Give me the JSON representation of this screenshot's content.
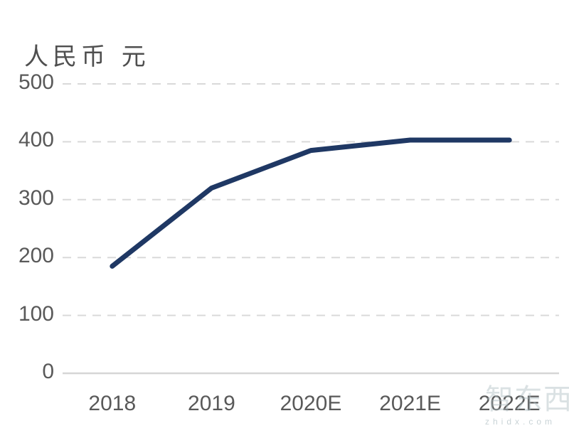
{
  "chart_data": {
    "type": "line",
    "title": "人民币 元",
    "categories": [
      "2018",
      "2019",
      "2020E",
      "2021E",
      "2022E"
    ],
    "series": [
      {
        "values": [
          185,
          320,
          385,
          403,
          403
        ]
      }
    ],
    "xlabel": "",
    "ylabel": "人民币 元",
    "ylim": [
      0,
      500
    ],
    "yticks": [
      0,
      100,
      200,
      300,
      400,
      500
    ],
    "grid": "horizontal-dashed",
    "legend": "none",
    "colors": {
      "line": "#1f3864",
      "gridline": "#d9d9d9",
      "baseline": "#d6d6d6",
      "tick_label": "#595959",
      "title": "#4f4f4f"
    }
  },
  "watermark": {
    "logo": "智东西",
    "domain": "zhidx.com"
  }
}
